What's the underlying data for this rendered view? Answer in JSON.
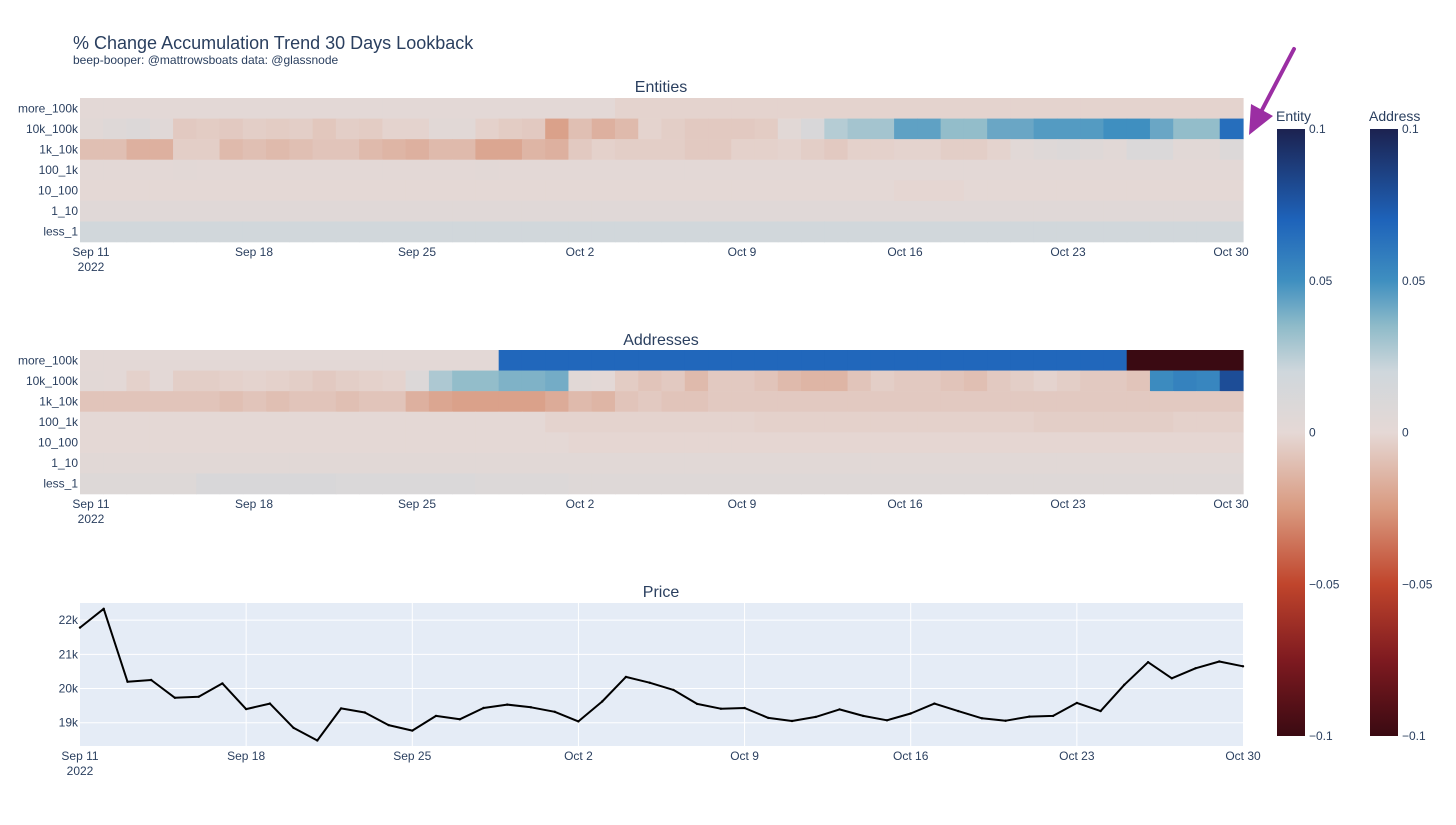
{
  "title": "% Change Accumulation Trend 30 Days Lookback",
  "subtitle": "beep-booper: @mattrowsboats data: @glassnode",
  "colors": {
    "scale": [
      [
        -0.1,
        "#3a0a12"
      ],
      [
        -0.075,
        "#7e1a20"
      ],
      [
        -0.05,
        "#c0452c"
      ],
      [
        -0.025,
        "#d99a80"
      ],
      [
        0.0,
        "#e5d8d5"
      ],
      [
        0.02,
        "#cfd7dc"
      ],
      [
        0.035,
        "#8fbbc9"
      ],
      [
        0.05,
        "#3f8fc0"
      ],
      [
        0.07,
        "#1e63ba"
      ],
      [
        0.1,
        "#1c2250"
      ]
    ],
    "plot_bg": "#e5ecf6",
    "price_line": "#000000",
    "annotation_arrow": "#9b2ea3"
  },
  "chart_data": [
    {
      "type": "heatmap",
      "title": "Entities",
      "x_ticks": [
        "Sep 11",
        "Sep 18",
        "Sep 25",
        "Oct 2",
        "Oct 9",
        "Oct 16",
        "Oct 23",
        "Oct 30"
      ],
      "x_year": "2022",
      "rows": [
        "more_100k",
        "10k_100k",
        "1k_10k",
        "100_1k",
        "10_100",
        "1_10",
        "less_1"
      ],
      "values": [
        [
          0.002,
          0.002,
          0.002,
          0.002,
          0.002,
          0.002,
          0.002,
          0.002,
          0.002,
          0.002,
          0.002,
          0.002,
          0.002,
          0.002,
          0.002,
          0.002,
          0.002,
          0.002,
          0.002,
          0.002,
          0.002,
          0.002,
          0.002,
          -0.002,
          -0.002,
          -0.002,
          -0.002,
          -0.002,
          -0.002,
          -0.002,
          -0.002,
          -0.002,
          -0.002,
          -0.002,
          -0.002,
          -0.002,
          -0.002,
          -0.002,
          -0.002,
          -0.002,
          -0.002,
          -0.002,
          -0.002,
          -0.002,
          -0.002,
          -0.002,
          -0.002,
          -0.002,
          -0.002,
          -0.002
        ],
        [
          0.004,
          0.006,
          0.008,
          0.005,
          -0.006,
          -0.005,
          -0.006,
          -0.004,
          -0.005,
          -0.004,
          -0.007,
          -0.004,
          -0.005,
          -0.002,
          -0.002,
          0.004,
          0.004,
          -0.003,
          -0.005,
          -0.006,
          -0.022,
          -0.01,
          -0.016,
          -0.012,
          -0.002,
          -0.004,
          -0.006,
          -0.006,
          -0.006,
          -0.005,
          0.004,
          0.012,
          0.026,
          0.03,
          0.03,
          0.044,
          0.044,
          0.034,
          0.034,
          0.042,
          0.042,
          0.046,
          0.046,
          0.046,
          0.05,
          0.05,
          0.042,
          0.034,
          0.034,
          0.065
        ],
        [
          -0.01,
          -0.01,
          -0.016,
          -0.016,
          -0.004,
          -0.004,
          -0.012,
          -0.01,
          -0.012,
          -0.01,
          -0.008,
          -0.008,
          -0.012,
          -0.014,
          -0.016,
          -0.012,
          -0.012,
          -0.02,
          -0.02,
          -0.014,
          -0.016,
          -0.006,
          -0.003,
          -0.004,
          -0.004,
          -0.004,
          -0.006,
          -0.006,
          -0.003,
          -0.003,
          -0.002,
          -0.004,
          -0.006,
          -0.003,
          -0.003,
          -0.002,
          -0.002,
          -0.004,
          -0.004,
          -0.002,
          0.004,
          0.006,
          0.008,
          0.006,
          0.004,
          0.01,
          0.01,
          0.004,
          0.004,
          0.008
        ],
        [
          0.002,
          0.002,
          0.002,
          0.002,
          0.003,
          0.002,
          0.002,
          0.002,
          0.002,
          0.002,
          0.002,
          0.002,
          0.002,
          0.002,
          0.002,
          0.002,
          0.002,
          0.003,
          0.002,
          0.002,
          0.002,
          0.002,
          0.002,
          0.002,
          0.002,
          0.002,
          0.002,
          0.002,
          0.002,
          0.002,
          0.002,
          0.002,
          0.002,
          0.002,
          0.002,
          0.002,
          0.002,
          0.002,
          0.002,
          0.002,
          0.002,
          0.002,
          0.002,
          0.002,
          0.002,
          0.002,
          0.002,
          0.002,
          0.002,
          0.002
        ],
        [
          0.001,
          0.001,
          0.001,
          0.001,
          0.001,
          0.001,
          0.001,
          0.001,
          0.001,
          0.001,
          0.001,
          0.001,
          0.001,
          0.001,
          0.001,
          0.001,
          0.001,
          0.001,
          0.001,
          0.001,
          0.001,
          0.001,
          0.001,
          0.001,
          0.001,
          0.001,
          0.001,
          0.001,
          0.001,
          0.001,
          0.001,
          0.001,
          0.001,
          0.001,
          0.001,
          -0.001,
          -0.001,
          -0.001,
          0.001,
          0.001,
          0.001,
          0.001,
          0.001,
          0.001,
          0.001,
          0.001,
          0.001,
          0.001,
          0.001,
          0.001
        ],
        [
          0.005,
          0.005,
          0.005,
          0.005,
          0.005,
          0.005,
          0.005,
          0.005,
          0.005,
          0.005,
          0.005,
          0.005,
          0.005,
          0.005,
          0.005,
          0.005,
          0.005,
          0.005,
          0.005,
          0.005,
          0.005,
          0.005,
          0.005,
          0.005,
          0.005,
          0.005,
          0.005,
          0.005,
          0.005,
          0.005,
          0.005,
          0.005,
          0.005,
          0.005,
          0.005,
          0.005,
          0.005,
          0.005,
          0.005,
          0.005,
          0.005,
          0.005,
          0.005,
          0.005,
          0.005,
          0.005,
          0.005,
          0.005,
          0.005,
          0.005
        ],
        [
          0.018,
          0.018,
          0.018,
          0.018,
          0.018,
          0.018,
          0.018,
          0.018,
          0.018,
          0.018,
          0.018,
          0.018,
          0.018,
          0.018,
          0.018,
          0.018,
          0.018,
          0.018,
          0.018,
          0.018,
          0.018,
          0.018,
          0.018,
          0.018,
          0.018,
          0.018,
          0.018,
          0.018,
          0.018,
          0.018,
          0.018,
          0.018,
          0.018,
          0.018,
          0.018,
          0.018,
          0.018,
          0.018,
          0.018,
          0.018,
          0.018,
          0.018,
          0.018,
          0.018,
          0.018,
          0.018,
          0.018,
          0.018,
          0.018,
          0.018
        ]
      ]
    },
    {
      "type": "heatmap",
      "title": "Addresses",
      "x_ticks": [
        "Sep 11",
        "Sep 18",
        "Sep 25",
        "Oct 2",
        "Oct 9",
        "Oct 16",
        "Oct 23",
        "Oct 30"
      ],
      "x_year": "2022",
      "rows": [
        "more_100k",
        "10k_100k",
        "1k_10k",
        "100_1k",
        "10_100",
        "1_10",
        "less_1"
      ],
      "values": [
        [
          0.002,
          0.002,
          0.002,
          0.002,
          0.002,
          0.002,
          0.002,
          0.002,
          0.002,
          0.002,
          0.002,
          0.002,
          0.002,
          0.002,
          0.002,
          0.002,
          0.002,
          0.002,
          0.002,
          0.002,
          0.002,
          0.002,
          0.002,
          0.002,
          0.002,
          0.002,
          0.002,
          0.002,
          0.002,
          0.002,
          0.002,
          0.002,
          0.002,
          0.002,
          0.002,
          0.002,
          0.002,
          0.002,
          0.002,
          0.002,
          0.002,
          0.002,
          0.002,
          0.002,
          0.002,
          0.002,
          0.002,
          0.002,
          0.002,
          0.002
        ],
        [
          0.003,
          0.002,
          -0.003,
          0.002,
          -0.004,
          -0.004,
          -0.003,
          -0.002,
          -0.003,
          -0.004,
          -0.006,
          -0.004,
          -0.003,
          -0.002,
          0.008,
          0.028,
          0.034,
          0.034,
          0.038,
          0.038,
          0.04,
          0.004,
          0.002,
          -0.005,
          -0.008,
          -0.006,
          -0.012,
          -0.006,
          -0.006,
          -0.008,
          -0.012,
          -0.014,
          -0.014,
          -0.008,
          -0.004,
          -0.006,
          -0.006,
          -0.008,
          -0.01,
          -0.006,
          -0.004,
          -0.002,
          -0.004,
          -0.006,
          -0.006,
          -0.008,
          0.052,
          0.056,
          0.054,
          0.08
        ],
        [
          -0.008,
          -0.008,
          -0.008,
          -0.008,
          -0.008,
          -0.008,
          -0.01,
          -0.008,
          -0.01,
          -0.008,
          -0.008,
          -0.01,
          -0.008,
          -0.008,
          -0.016,
          -0.02,
          -0.022,
          -0.022,
          -0.022,
          -0.022,
          -0.018,
          -0.012,
          -0.014,
          -0.008,
          -0.006,
          -0.008,
          -0.008,
          -0.006,
          -0.006,
          -0.006,
          -0.006,
          -0.006,
          -0.006,
          -0.006,
          -0.006,
          -0.006,
          -0.006,
          -0.006,
          -0.006,
          -0.006,
          -0.006,
          -0.006,
          -0.006,
          -0.006,
          -0.006,
          -0.006,
          -0.006,
          -0.006,
          -0.006,
          -0.006
        ],
        [
          0.001,
          0.001,
          0.001,
          0.001,
          0.001,
          0.001,
          0.001,
          0.001,
          0.001,
          0.001,
          0.001,
          0.001,
          0.001,
          0.001,
          0.001,
          0.001,
          0.001,
          0.001,
          0.001,
          0.001,
          -0.002,
          -0.002,
          -0.002,
          -0.002,
          -0.002,
          -0.002,
          -0.002,
          -0.002,
          -0.002,
          -0.003,
          -0.003,
          -0.003,
          -0.003,
          -0.003,
          -0.003,
          -0.003,
          -0.003,
          -0.003,
          -0.003,
          -0.003,
          -0.003,
          -0.004,
          -0.004,
          -0.004,
          -0.004,
          -0.004,
          -0.004,
          -0.003,
          -0.003,
          -0.003
        ],
        [
          0.001,
          0.001,
          0.001,
          0.001,
          0.001,
          0.001,
          0.001,
          0.001,
          0.001,
          0.001,
          0.001,
          0.001,
          0.001,
          0.001,
          0.001,
          0.001,
          0.001,
          0.001,
          0.001,
          0.001,
          0.001,
          -0.001,
          -0.001,
          -0.001,
          -0.001,
          -0.001,
          -0.001,
          -0.001,
          -0.001,
          -0.001,
          -0.001,
          -0.001,
          -0.001,
          -0.001,
          -0.001,
          -0.001,
          -0.001,
          -0.001,
          -0.001,
          -0.001,
          -0.001,
          -0.001,
          -0.001,
          -0.001,
          -0.001,
          -0.001,
          -0.001,
          -0.001,
          -0.001,
          -0.001
        ],
        [
          0.004,
          0.004,
          0.004,
          0.004,
          0.004,
          0.004,
          0.004,
          0.004,
          0.004,
          0.004,
          0.004,
          0.004,
          0.004,
          0.004,
          0.004,
          0.004,
          0.004,
          0.004,
          0.004,
          0.004,
          0.004,
          0.004,
          0.004,
          0.004,
          0.004,
          0.004,
          0.004,
          0.004,
          0.004,
          0.004,
          0.004,
          0.004,
          0.004,
          0.004,
          0.004,
          0.004,
          0.004,
          0.004,
          0.004,
          0.004,
          0.004,
          0.004,
          0.004,
          0.004,
          0.004,
          0.004,
          0.004,
          0.004,
          0.004,
          0.004
        ],
        [
          0.007,
          0.007,
          0.007,
          0.007,
          0.007,
          0.012,
          0.012,
          0.012,
          0.012,
          0.012,
          0.012,
          0.01,
          0.01,
          0.01,
          0.01,
          0.01,
          0.01,
          0.008,
          0.008,
          0.008,
          0.008,
          0.006,
          0.006,
          0.006,
          0.006,
          0.006,
          0.006,
          0.006,
          0.006,
          0.006,
          0.006,
          0.006,
          0.006,
          0.006,
          0.006,
          0.006,
          0.006,
          0.006,
          0.006,
          0.006,
          0.006,
          0.006,
          0.006,
          0.006,
          0.006,
          0.006,
          0.006,
          0.006,
          0.006,
          0.006
        ]
      ],
      "overrides": [
        {
          "row": 0,
          "from": 18,
          "to": 45,
          "value": 0.068
        },
        {
          "row": 0,
          "from": 45,
          "to": 50,
          "value": -0.1
        }
      ]
    },
    {
      "type": "line",
      "title": "Price",
      "x_ticks": [
        "Sep 11",
        "Sep 18",
        "Sep 25",
        "Oct 2",
        "Oct 9",
        "Oct 16",
        "Oct 23",
        "Oct 30"
      ],
      "x_year": "2022",
      "y_ticks": [
        "19k",
        "20k",
        "21k",
        "22k"
      ],
      "y_tick_values": [
        19000,
        20000,
        21000,
        22000
      ],
      "ylim": [
        18320,
        22500
      ],
      "x_days_range": [
        0,
        49
      ],
      "y": [
        21780,
        22330,
        20200,
        20250,
        19730,
        19760,
        20150,
        19400,
        19560,
        18850,
        18480,
        19420,
        19300,
        18930,
        18770,
        19200,
        19100,
        19430,
        19530,
        19450,
        19320,
        19040,
        19620,
        20340,
        20170,
        19960,
        19550,
        19410,
        19430,
        19140,
        19050,
        19170,
        19390,
        19200,
        19070,
        19270,
        19560,
        19340,
        19130,
        19060,
        19180,
        19200,
        19580,
        19340,
        20110,
        20770,
        20300,
        20590,
        20790,
        20650
      ]
    }
  ],
  "colorbars": [
    {
      "title": "Entity",
      "ticks": [
        "0.1",
        "0.05",
        "0",
        "−0.05",
        "−0.1"
      ],
      "tick_values": [
        0.1,
        0.05,
        0,
        -0.05,
        -0.1
      ]
    },
    {
      "title": "Address",
      "ticks": [
        "0.1",
        "0.05",
        "0",
        "−0.05",
        "−0.1"
      ],
      "tick_values": [
        0.1,
        0.05,
        0,
        -0.05,
        -0.1
      ]
    }
  ]
}
